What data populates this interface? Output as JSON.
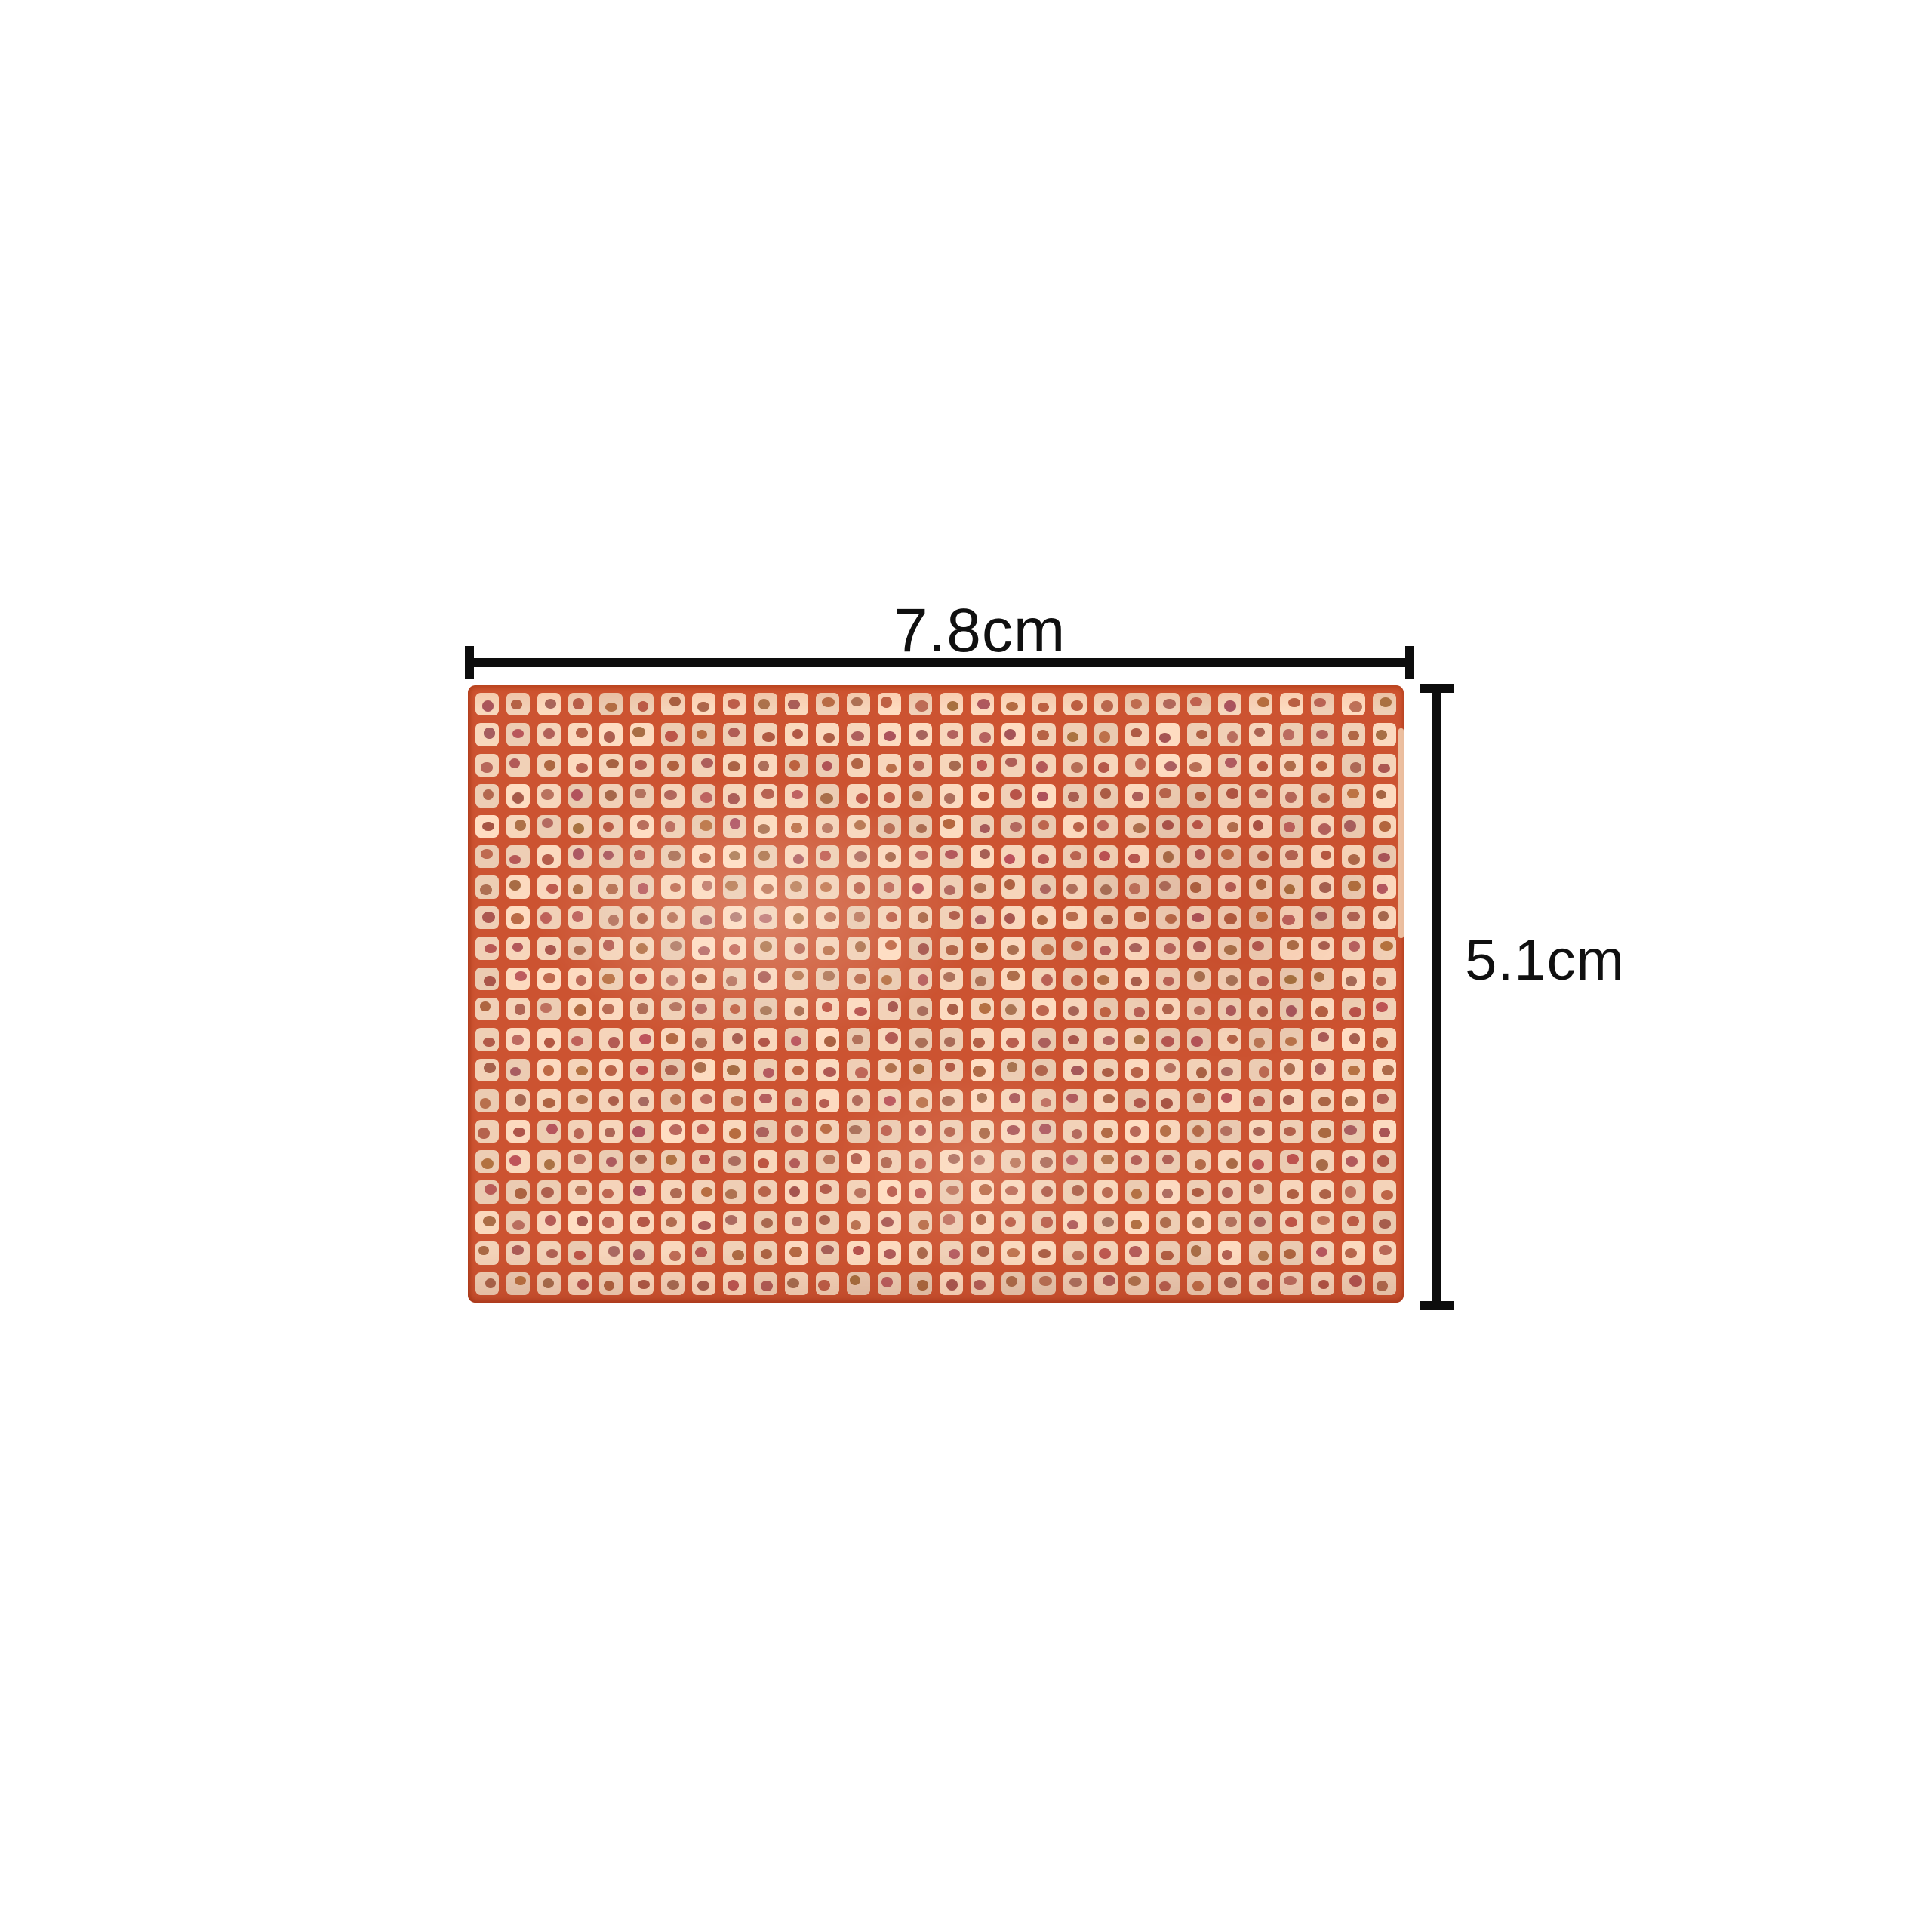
{
  "page": {
    "background": "#ffffff"
  },
  "annotations": {
    "width_label": "7.8cm",
    "height_label": "5.1cm",
    "line_color": "#0d0d0d",
    "text_color": "#101010"
  },
  "board": {
    "subject": "copper-pad perfboard prototype PCB",
    "columns": 30,
    "rows": 20,
    "colors": {
      "substrate": "#cc5331",
      "pad": "#f4d3b9",
      "hole": "#b26350",
      "edge_highlight": "#f2d2b4"
    }
  }
}
